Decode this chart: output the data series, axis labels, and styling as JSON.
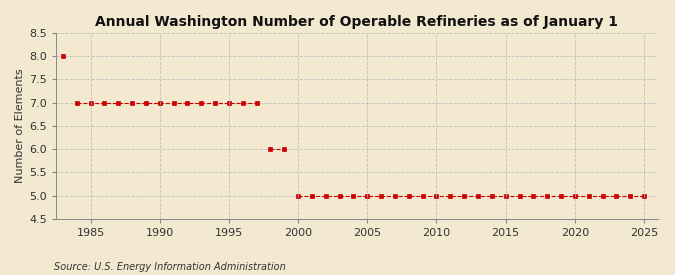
{
  "title": "Annual Washington Number of Operable Refineries as of January 1",
  "ylabel": "Number of Elements",
  "source": "Source: U.S. Energy Information Administration",
  "background_color": "#f3e8d0",
  "plot_bg_color": "#f3e8d0",
  "line_color": "#cc0000",
  "years": [
    1983,
    1984,
    1985,
    1986,
    1987,
    1988,
    1989,
    1990,
    1991,
    1992,
    1993,
    1994,
    1995,
    1996,
    1997,
    1998,
    1999,
    2000,
    2001,
    2002,
    2003,
    2004,
    2005,
    2006,
    2007,
    2008,
    2009,
    2010,
    2011,
    2012,
    2013,
    2014,
    2015,
    2016,
    2017,
    2018,
    2019,
    2020,
    2021,
    2022,
    2023,
    2024,
    2025
  ],
  "values": [
    8,
    7,
    7,
    7,
    7,
    7,
    7,
    7,
    7,
    7,
    7,
    7,
    7,
    7,
    7,
    6,
    6,
    5,
    5,
    5,
    5,
    5,
    5,
    5,
    5,
    5,
    5,
    5,
    5,
    5,
    5,
    5,
    5,
    5,
    5,
    5,
    5,
    5,
    5,
    5,
    5,
    5,
    5
  ],
  "ylim": [
    4.5,
    8.5
  ],
  "yticks": [
    4.5,
    5.0,
    5.5,
    6.0,
    6.5,
    7.0,
    7.5,
    8.0,
    8.5
  ],
  "xlim": [
    1982.5,
    2026
  ],
  "xticks": [
    1985,
    1990,
    1995,
    2000,
    2005,
    2010,
    2015,
    2020,
    2025
  ],
  "grid_color": "#bbbbbb",
  "marker": "s",
  "markersize": 3.0,
  "linewidth": 0.8,
  "title_fontsize": 10,
  "ylabel_fontsize": 8,
  "tick_fontsize": 8
}
